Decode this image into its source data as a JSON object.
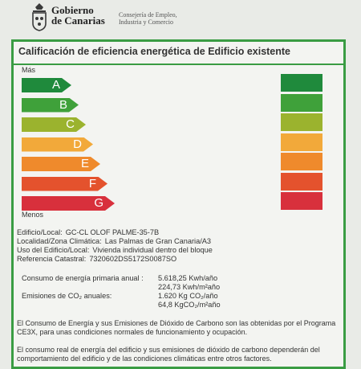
{
  "header": {
    "logo_icon": "canarias-crest-icon",
    "gov_line1": "Gobierno",
    "gov_line2": "de Canarias",
    "dept_line1": "Consejería de Empleo,",
    "dept_line2": "Industria y Comercio"
  },
  "certificate": {
    "title": "Calificación de eficiencia energética de Edificio existente",
    "top_label": "Más",
    "bottom_label": "Menos",
    "classes": [
      {
        "letter": "A",
        "color": "#1f8a3c"
      },
      {
        "letter": "B",
        "color": "#3fa13a"
      },
      {
        "letter": "C",
        "color": "#9bb32e"
      },
      {
        "letter": "D",
        "color": "#f2a93a"
      },
      {
        "letter": "E",
        "color": "#ef8a2c"
      },
      {
        "letter": "F",
        "color": "#e4522d"
      },
      {
        "letter": "G",
        "color": "#d8303c"
      }
    ],
    "result_boxes": [
      "#1f8a3c",
      "#3fa13a",
      "#9bb32e",
      "#f2a93a",
      "#ef8a2c",
      "#e4522d",
      "#d8303c"
    ],
    "info": {
      "building_label": "Edificio/Local:",
      "building_value": "GC-CL OLOF PALME-35-7B",
      "location_label": "Localidad/Zona Climática:",
      "location_value": "Las Palmas de Gran Canaria/A3",
      "use_label": "Uso del Edificio/Local:",
      "use_value": "Vivienda individual dentro del bloque",
      "cadastral_label": "Referencia Catastral:",
      "cadastral_value": "7320602DS5172S0087SO"
    },
    "consumption": {
      "energy_label": "Consumo de energía primaria anual :",
      "energy_value1": "5.618,25 Kwh/año",
      "energy_value2": "224,73 Kwh/m²año",
      "emissions_label": "Emisiones de CO₂ anuales:",
      "emissions_value1": "1.620 Kg CO₂/año",
      "emissions_value2": "64,8 KgCO₂/m²año"
    },
    "note1": "El Consumo de Energía y sus Emisiones de Dióxido de Carbono son las obtenidas por el Programa CE3X, para unas condiciones normales de funcionamiento y ocupación.",
    "note2": "El consumo real de energía del edificio y sus emisiones de dióxido de carbono dependerán del comportamiento del edificio y de las condiciones climáticas entre otros factores."
  }
}
